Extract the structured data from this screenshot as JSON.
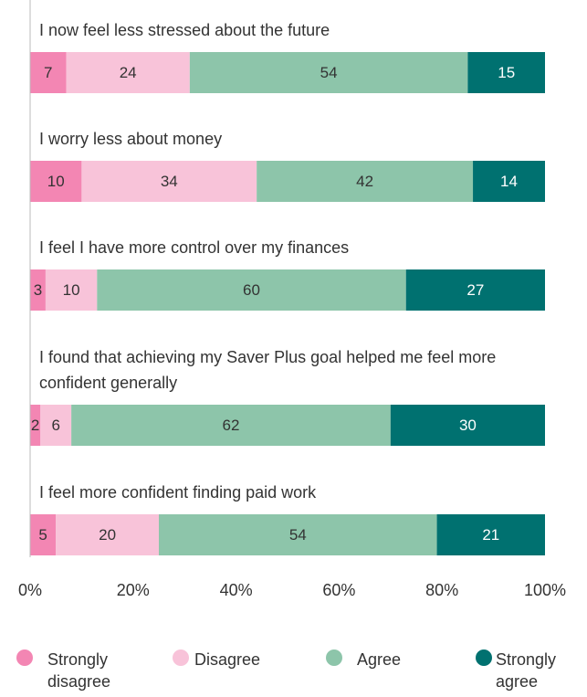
{
  "chart_data": {
    "type": "stacked-bar-horizontal",
    "categories": [
      "I now feel less stressed about the future",
      "I worry less about money",
      "I feel I have more control over my finances",
      "I found that achieving my Saver Plus goal helped me feel more confident generally",
      "I feel more confident finding paid work"
    ],
    "series": [
      {
        "name": "Strongly disagree",
        "color": "#f386b3",
        "values": [
          7,
          10,
          3,
          2,
          5
        ]
      },
      {
        "name": "Disagree",
        "color": "#f8c3d9",
        "values": [
          24,
          34,
          10,
          6,
          20
        ]
      },
      {
        "name": "Agree",
        "color": "#8dc5aa",
        "values": [
          54,
          42,
          60,
          62,
          54
        ]
      },
      {
        "name": "Strongly agree",
        "color": "#007170",
        "values": [
          15,
          14,
          27,
          30,
          21
        ]
      }
    ],
    "xlim": [
      0,
      100
    ],
    "xticks": [
      {
        "value": 0,
        "label": "0%"
      },
      {
        "value": 20,
        "label": "20%"
      },
      {
        "value": 40,
        "label": "40%"
      },
      {
        "value": 60,
        "label": "60%"
      },
      {
        "value": 80,
        "label": "80%"
      },
      {
        "value": 100,
        "label": "100%"
      }
    ],
    "legend": "bottom"
  }
}
